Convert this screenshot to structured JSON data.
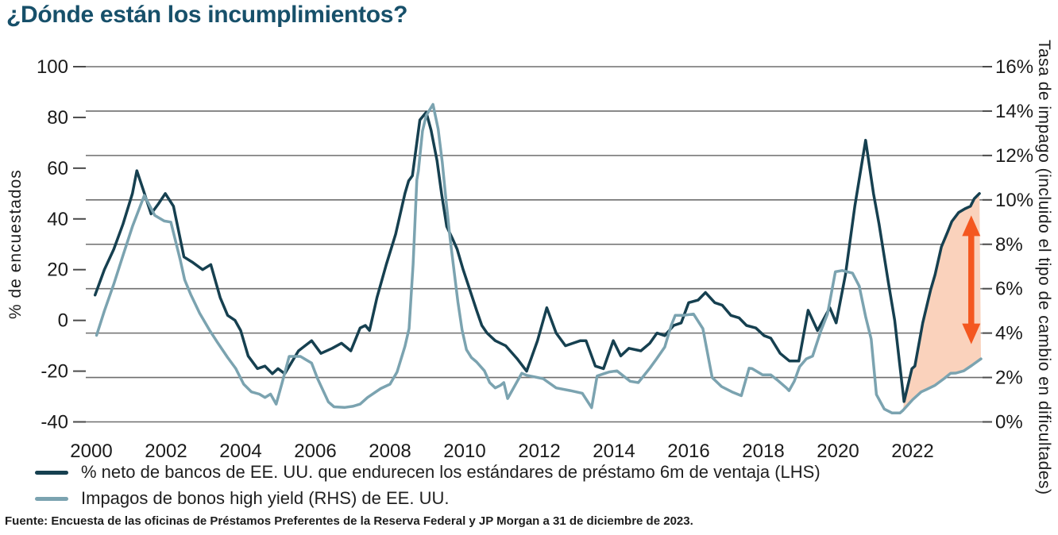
{
  "title": "¿Dónde están los incumplimientos?",
  "source": "Fuente: Encuesta de las oficinas de Préstamos Preferentes de la Reserva Federal y JP Morgan a 31 de diciembre de 2023.",
  "chart_data": {
    "type": "line",
    "title": "¿Dónde están los incumplimientos?",
    "grid": "horizontal",
    "legend_position": "bottom-left",
    "x_axis": {
      "tick_labels": [
        "2000",
        "2002",
        "2004",
        "2006",
        "2008",
        "2010",
        "2012",
        "2014",
        "2016",
        "2018",
        "2020",
        "2022"
      ],
      "tick_years": [
        2000,
        2002,
        2004,
        2006,
        2008,
        2010,
        2012,
        2014,
        2016,
        2018,
        2020,
        2022
      ],
      "range": [
        1999.85,
        2023.95
      ]
    },
    "left_axis": {
      "label": "% de encuestados",
      "ticks": [
        100,
        80,
        60,
        40,
        20,
        0,
        -20,
        -40
      ],
      "range": [
        -40,
        100
      ]
    },
    "right_axis": {
      "label": "Tasa de impago (incluido el tipo de cambio en dificultades)",
      "tick_labels": [
        "16%",
        "14%",
        "12%",
        "10%",
        "8%",
        "6%",
        "4%",
        "2%",
        "0%"
      ],
      "tick_values": [
        16,
        14,
        12,
        10,
        8,
        6,
        4,
        2,
        0
      ],
      "range": [
        0,
        16
      ]
    },
    "series": [
      {
        "name": "% neto de bancos de EE. UU. que endurecen los estándares de préstamo 6m de ventaja (LHS)",
        "axis": "left",
        "color": "#164050",
        "points": [
          [
            2000.1,
            10
          ],
          [
            2000.35,
            20
          ],
          [
            2000.6,
            28
          ],
          [
            2000.85,
            38
          ],
          [
            2001.1,
            50
          ],
          [
            2001.22,
            59
          ],
          [
            2001.4,
            51
          ],
          [
            2001.6,
            42
          ],
          [
            2001.8,
            46
          ],
          [
            2001.98,
            50
          ],
          [
            2002.2,
            45
          ],
          [
            2002.48,
            25
          ],
          [
            2002.7,
            23
          ],
          [
            2002.98,
            20
          ],
          [
            2003.2,
            22
          ],
          [
            2003.45,
            9
          ],
          [
            2003.65,
            2
          ],
          [
            2003.85,
            0
          ],
          [
            2004.0,
            -4
          ],
          [
            2004.2,
            -14
          ],
          [
            2004.45,
            -19
          ],
          [
            2004.65,
            -18
          ],
          [
            2004.85,
            -21
          ],
          [
            2005.0,
            -19
          ],
          [
            2005.18,
            -21
          ],
          [
            2005.55,
            -12
          ],
          [
            2005.9,
            -8
          ],
          [
            2006.15,
            -13
          ],
          [
            2006.45,
            -11
          ],
          [
            2006.7,
            -9
          ],
          [
            2006.95,
            -12
          ],
          [
            2007.2,
            -3
          ],
          [
            2007.34,
            -2
          ],
          [
            2007.45,
            -4
          ],
          [
            2007.65,
            9
          ],
          [
            2007.9,
            22
          ],
          [
            2008.15,
            34
          ],
          [
            2008.4,
            50
          ],
          [
            2008.5,
            55
          ],
          [
            2008.6,
            57
          ],
          [
            2008.8,
            79
          ],
          [
            2008.97,
            82
          ],
          [
            2009.1,
            75
          ],
          [
            2009.26,
            63
          ],
          [
            2009.38,
            50
          ],
          [
            2009.52,
            37
          ],
          [
            2009.68,
            32
          ],
          [
            2009.8,
            28
          ],
          [
            2009.96,
            20
          ],
          [
            2010.14,
            12
          ],
          [
            2010.32,
            4
          ],
          [
            2010.46,
            -2
          ],
          [
            2010.6,
            -5
          ],
          [
            2010.82,
            -8
          ],
          [
            2011.1,
            -10
          ],
          [
            2011.4,
            -15
          ],
          [
            2011.66,
            -20
          ],
          [
            2011.95,
            -8
          ],
          [
            2012.2,
            5
          ],
          [
            2012.45,
            -5
          ],
          [
            2012.7,
            -10
          ],
          [
            2012.9,
            -9
          ],
          [
            2013.1,
            -8
          ],
          [
            2013.25,
            -8
          ],
          [
            2013.5,
            -18
          ],
          [
            2013.72,
            -19
          ],
          [
            2013.98,
            -8
          ],
          [
            2014.18,
            -14
          ],
          [
            2014.4,
            -11
          ],
          [
            2014.72,
            -12
          ],
          [
            2014.96,
            -9
          ],
          [
            2015.15,
            -5
          ],
          [
            2015.36,
            -6
          ],
          [
            2015.6,
            -2
          ],
          [
            2015.8,
            -1
          ],
          [
            2016.0,
            7
          ],
          [
            2016.25,
            8
          ],
          [
            2016.45,
            11
          ],
          [
            2016.7,
            7
          ],
          [
            2016.9,
            6
          ],
          [
            2017.13,
            2
          ],
          [
            2017.35,
            1
          ],
          [
            2017.55,
            -2
          ],
          [
            2017.8,
            -3
          ],
          [
            2018.02,
            -6
          ],
          [
            2018.2,
            -7
          ],
          [
            2018.45,
            -13
          ],
          [
            2018.7,
            -16
          ],
          [
            2018.95,
            -16
          ],
          [
            2019.2,
            4
          ],
          [
            2019.45,
            -4
          ],
          [
            2019.78,
            5
          ],
          [
            2019.95,
            -1
          ],
          [
            2020.2,
            18
          ],
          [
            2020.45,
            45
          ],
          [
            2020.74,
            71
          ],
          [
            2020.95,
            50
          ],
          [
            2021.1,
            38
          ],
          [
            2021.35,
            15
          ],
          [
            2021.52,
            0
          ],
          [
            2021.65,
            -17
          ],
          [
            2021.77,
            -32
          ],
          [
            2021.98,
            -19
          ],
          [
            2022.06,
            -18
          ],
          [
            2022.27,
            -1
          ],
          [
            2022.48,
            12
          ],
          [
            2022.6,
            18
          ],
          [
            2022.77,
            29
          ],
          [
            2022.94,
            35
          ],
          [
            2023.05,
            39
          ],
          [
            2023.23,
            42.5
          ],
          [
            2023.4,
            44
          ],
          [
            2023.55,
            45
          ],
          [
            2023.65,
            48
          ],
          [
            2023.79,
            50
          ]
        ]
      },
      {
        "name": "Impagos de bonos high yield (RHS) de EE. UU.",
        "axis": "right",
        "color": "#7BA3B0",
        "points": [
          [
            2000.14,
            3.9
          ],
          [
            2000.35,
            5.0
          ],
          [
            2000.6,
            6.2
          ],
          [
            2000.85,
            7.5
          ],
          [
            2001.1,
            8.8
          ],
          [
            2001.42,
            10.2
          ],
          [
            2001.7,
            9.3
          ],
          [
            2001.95,
            9.05
          ],
          [
            2002.13,
            9.0
          ],
          [
            2002.38,
            7.3
          ],
          [
            2002.5,
            6.4
          ],
          [
            2002.66,
            5.75
          ],
          [
            2002.9,
            4.9
          ],
          [
            2003.16,
            4.15
          ],
          [
            2003.37,
            3.6
          ],
          [
            2003.65,
            2.9
          ],
          [
            2003.87,
            2.4
          ],
          [
            2004.08,
            1.7
          ],
          [
            2004.29,
            1.35
          ],
          [
            2004.5,
            1.25
          ],
          [
            2004.65,
            1.1
          ],
          [
            2004.8,
            1.25
          ],
          [
            2004.95,
            0.8
          ],
          [
            2005.1,
            1.7
          ],
          [
            2005.3,
            2.95
          ],
          [
            2005.6,
            2.95
          ],
          [
            2005.9,
            2.65
          ],
          [
            2006.06,
            1.95
          ],
          [
            2006.35,
            0.9
          ],
          [
            2006.5,
            0.68
          ],
          [
            2006.78,
            0.65
          ],
          [
            2007.0,
            0.7
          ],
          [
            2007.2,
            0.8
          ],
          [
            2007.4,
            1.1
          ],
          [
            2007.75,
            1.5
          ],
          [
            2008.0,
            1.7
          ],
          [
            2008.19,
            2.25
          ],
          [
            2008.4,
            3.4
          ],
          [
            2008.51,
            4.2
          ],
          [
            2008.62,
            7.1
          ],
          [
            2008.72,
            10.9
          ],
          [
            2008.76,
            11.3
          ],
          [
            2008.87,
            13.1
          ],
          [
            2008.97,
            13.8
          ],
          [
            2009.15,
            14.3
          ],
          [
            2009.29,
            13.2
          ],
          [
            2009.4,
            11.7
          ],
          [
            2009.5,
            10.0
          ],
          [
            2009.61,
            8.25
          ],
          [
            2009.72,
            6.76
          ],
          [
            2009.82,
            5.4
          ],
          [
            2009.93,
            4.15
          ],
          [
            2010.05,
            3.25
          ],
          [
            2010.18,
            2.9
          ],
          [
            2010.32,
            2.7
          ],
          [
            2010.53,
            2.3
          ],
          [
            2010.67,
            1.77
          ],
          [
            2010.82,
            1.53
          ],
          [
            2010.96,
            1.65
          ],
          [
            2011.05,
            1.77
          ],
          [
            2011.15,
            1.05
          ],
          [
            2011.53,
            2.19
          ],
          [
            2011.66,
            2.1
          ],
          [
            2012.1,
            1.95
          ],
          [
            2012.45,
            1.53
          ],
          [
            2012.83,
            1.41
          ],
          [
            2013.15,
            1.29
          ],
          [
            2013.4,
            0.64
          ],
          [
            2013.55,
            2.07
          ],
          [
            2013.87,
            2.25
          ],
          [
            2014.08,
            2.3
          ],
          [
            2014.43,
            1.83
          ],
          [
            2014.65,
            1.77
          ],
          [
            2014.96,
            2.42
          ],
          [
            2015.14,
            2.84
          ],
          [
            2015.36,
            3.37
          ],
          [
            2015.53,
            4.33
          ],
          [
            2015.64,
            4.8
          ],
          [
            2015.85,
            4.8
          ],
          [
            2016.13,
            4.86
          ],
          [
            2016.38,
            4.2
          ],
          [
            2016.63,
            2.0
          ],
          [
            2016.88,
            1.59
          ],
          [
            2017.16,
            1.35
          ],
          [
            2017.41,
            1.18
          ],
          [
            2017.62,
            2.42
          ],
          [
            2017.7,
            2.4
          ],
          [
            2017.98,
            2.12
          ],
          [
            2018.2,
            2.12
          ],
          [
            2018.37,
            1.89
          ],
          [
            2018.62,
            1.53
          ],
          [
            2018.69,
            1.41
          ],
          [
            2018.83,
            1.83
          ],
          [
            2018.97,
            2.48
          ],
          [
            2019.15,
            2.84
          ],
          [
            2019.32,
            2.96
          ],
          [
            2019.54,
            4.09
          ],
          [
            2019.72,
            4.86
          ],
          [
            2019.93,
            6.76
          ],
          [
            2020.11,
            6.82
          ],
          [
            2020.39,
            6.7
          ],
          [
            2020.57,
            6.11
          ],
          [
            2020.74,
            4.74
          ],
          [
            2020.89,
            3.73
          ],
          [
            2021.03,
            1.23
          ],
          [
            2021.24,
            0.58
          ],
          [
            2021.45,
            0.4
          ],
          [
            2021.66,
            0.4
          ],
          [
            2021.74,
            0.52
          ],
          [
            2022.0,
            1.0
          ],
          [
            2022.23,
            1.35
          ],
          [
            2022.38,
            1.47
          ],
          [
            2022.6,
            1.65
          ],
          [
            2022.84,
            1.95
          ],
          [
            2023.02,
            2.19
          ],
          [
            2023.16,
            2.2
          ],
          [
            2023.37,
            2.3
          ],
          [
            2023.58,
            2.54
          ],
          [
            2023.83,
            2.84
          ]
        ]
      }
    ],
    "annotations": {
      "shaded_gap": {
        "description": "gap between tightening standards line and default rate line",
        "from_year": 2021.74,
        "color": "#FAD2BC"
      },
      "arrow": {
        "x_year": 2023.57,
        "top_pct": 9.3,
        "bottom_pct": 3.5,
        "color": "#F4571F"
      }
    }
  }
}
